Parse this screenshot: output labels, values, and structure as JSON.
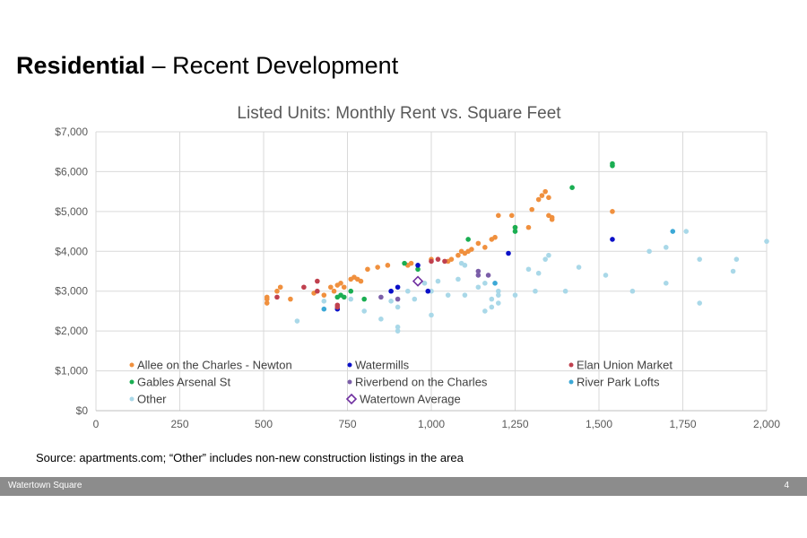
{
  "slide": {
    "title_bold": "Residential",
    "title_rest": " – Recent Development",
    "source": "Source: apartments.com; “Other” includes non-new construction listings in the area",
    "footer_left": "Watertown Square",
    "page_number": "4"
  },
  "chart_data": {
    "type": "scatter",
    "title": "Listed Units: Monthly Rent vs. Square Feet",
    "xlabel": "",
    "ylabel": "",
    "xlim": [
      0,
      2000
    ],
    "ylim": [
      0,
      7000
    ],
    "x_ticks": [
      0,
      250,
      500,
      750,
      1000,
      1250,
      1500,
      1750,
      2000
    ],
    "x_tick_labels": [
      "0",
      "250",
      "500",
      "750",
      "1,000",
      "1,250",
      "1,500",
      "1,750",
      "2,000"
    ],
    "y_ticks": [
      0,
      1000,
      2000,
      3000,
      4000,
      5000,
      6000,
      7000
    ],
    "y_tick_labels": [
      "$0",
      "$1,000",
      "$2,000",
      "$3,000",
      "$4,000",
      "$5,000",
      "$6,000",
      "$7,000"
    ],
    "grid": true,
    "legend_position": "inside-bottom",
    "series": [
      {
        "name": "Other",
        "color": "#a9d8e8",
        "marker": "dot",
        "points": [
          [
            600,
            2250
          ],
          [
            680,
            2750
          ],
          [
            760,
            2800
          ],
          [
            800,
            2500
          ],
          [
            850,
            2300
          ],
          [
            880,
            2750
          ],
          [
            900,
            2100
          ],
          [
            900,
            2000
          ],
          [
            900,
            2600
          ],
          [
            930,
            3000
          ],
          [
            950,
            2800
          ],
          [
            980,
            3200
          ],
          [
            1000,
            2400
          ],
          [
            1000,
            3000
          ],
          [
            1020,
            3250
          ],
          [
            1050,
            2900
          ],
          [
            1080,
            3300
          ],
          [
            1090,
            3700
          ],
          [
            1100,
            3650
          ],
          [
            1100,
            2900
          ],
          [
            1140,
            3100
          ],
          [
            1160,
            2500
          ],
          [
            1160,
            3200
          ],
          [
            1180,
            2800
          ],
          [
            1180,
            2600
          ],
          [
            1200,
            2700
          ],
          [
            1200,
            2900
          ],
          [
            1200,
            3000
          ],
          [
            1250,
            2900
          ],
          [
            1290,
            3550
          ],
          [
            1310,
            3000
          ],
          [
            1320,
            3450
          ],
          [
            1340,
            3800
          ],
          [
            1350,
            3900
          ],
          [
            1400,
            3000
          ],
          [
            1440,
            3600
          ],
          [
            1520,
            3400
          ],
          [
            1600,
            3000
          ],
          [
            1650,
            4000
          ],
          [
            1700,
            4100
          ],
          [
            1700,
            3200
          ],
          [
            1760,
            4500
          ],
          [
            1800,
            3800
          ],
          [
            1800,
            2700
          ],
          [
            1900,
            3500
          ],
          [
            1910,
            3800
          ],
          [
            2000,
            4250
          ]
        ]
      },
      {
        "name": "Allee on the Charles - Newton",
        "color": "#f0903e",
        "marker": "dot",
        "points": [
          [
            510,
            2800
          ],
          [
            510,
            2850
          ],
          [
            510,
            2700
          ],
          [
            540,
            3000
          ],
          [
            550,
            3100
          ],
          [
            580,
            2800
          ],
          [
            650,
            2950
          ],
          [
            680,
            2900
          ],
          [
            700,
            3100
          ],
          [
            710,
            3000
          ],
          [
            720,
            3150
          ],
          [
            730,
            3200
          ],
          [
            740,
            3100
          ],
          [
            760,
            3300
          ],
          [
            770,
            3350
          ],
          [
            780,
            3300
          ],
          [
            790,
            3250
          ],
          [
            810,
            3550
          ],
          [
            840,
            3600
          ],
          [
            870,
            3650
          ],
          [
            930,
            3650
          ],
          [
            940,
            3700
          ],
          [
            1000,
            3800
          ],
          [
            1050,
            3750
          ],
          [
            1060,
            3800
          ],
          [
            1080,
            3900
          ],
          [
            1090,
            4000
          ],
          [
            1100,
            3950
          ],
          [
            1110,
            4000
          ],
          [
            1120,
            4050
          ],
          [
            1140,
            4200
          ],
          [
            1160,
            4100
          ],
          [
            1180,
            4300
          ],
          [
            1190,
            4350
          ],
          [
            1200,
            4900
          ],
          [
            1240,
            4900
          ],
          [
            1250,
            4600
          ],
          [
            1290,
            4600
          ],
          [
            1300,
            5050
          ],
          [
            1320,
            5300
          ],
          [
            1330,
            5400
          ],
          [
            1340,
            5500
          ],
          [
            1350,
            5350
          ],
          [
            1350,
            4900
          ],
          [
            1360,
            4800
          ],
          [
            1360,
            4850
          ],
          [
            1540,
            5000
          ]
        ]
      },
      {
        "name": "Gables Arsenal St",
        "color": "#1aae52",
        "marker": "dot",
        "points": [
          [
            720,
            2850
          ],
          [
            730,
            2900
          ],
          [
            740,
            2850
          ],
          [
            760,
            3000
          ],
          [
            800,
            2800
          ],
          [
            920,
            3700
          ],
          [
            960,
            3550
          ],
          [
            1110,
            4300
          ],
          [
            1250,
            4500
          ],
          [
            1250,
            4600
          ],
          [
            1420,
            5600
          ],
          [
            1540,
            6150
          ],
          [
            1540,
            6200
          ]
        ]
      },
      {
        "name": "Watermills",
        "color": "#0a10c8",
        "marker": "dot",
        "points": [
          [
            720,
            2550
          ],
          [
            880,
            3000
          ],
          [
            900,
            3100
          ],
          [
            960,
            3650
          ],
          [
            990,
            3000
          ],
          [
            1230,
            3950
          ],
          [
            1540,
            4300
          ]
        ]
      },
      {
        "name": "Elan Union Market",
        "color": "#c0404e",
        "marker": "dot",
        "points": [
          [
            540,
            2850
          ],
          [
            620,
            3100
          ],
          [
            660,
            3250
          ],
          [
            660,
            3000
          ],
          [
            720,
            2600
          ],
          [
            720,
            2650
          ],
          [
            1000,
            3750
          ],
          [
            1020,
            3800
          ],
          [
            1040,
            3750
          ]
        ]
      },
      {
        "name": "Riverbend on the Charles",
        "color": "#7b5ea8",
        "marker": "dot",
        "points": [
          [
            850,
            2850
          ],
          [
            900,
            2800
          ],
          [
            1140,
            3500
          ],
          [
            1140,
            3400
          ],
          [
            1170,
            3400
          ]
        ]
      },
      {
        "name": "River Park Lofts",
        "color": "#3ba8d6",
        "marker": "dot",
        "points": [
          [
            680,
            2550
          ],
          [
            1190,
            3200
          ],
          [
            1720,
            4500
          ]
        ]
      },
      {
        "name": "Watertown Average",
        "color": "#7030a0",
        "marker": "diamond-open",
        "points": [
          [
            960,
            3250
          ]
        ]
      }
    ],
    "legend_order": [
      "Allee on the Charles - Newton",
      "Watermills",
      "Elan Union Market",
      "Gables Arsenal St",
      "Riverbend on the Charles",
      "River Park Lofts",
      "Other",
      "Watertown Average"
    ]
  }
}
